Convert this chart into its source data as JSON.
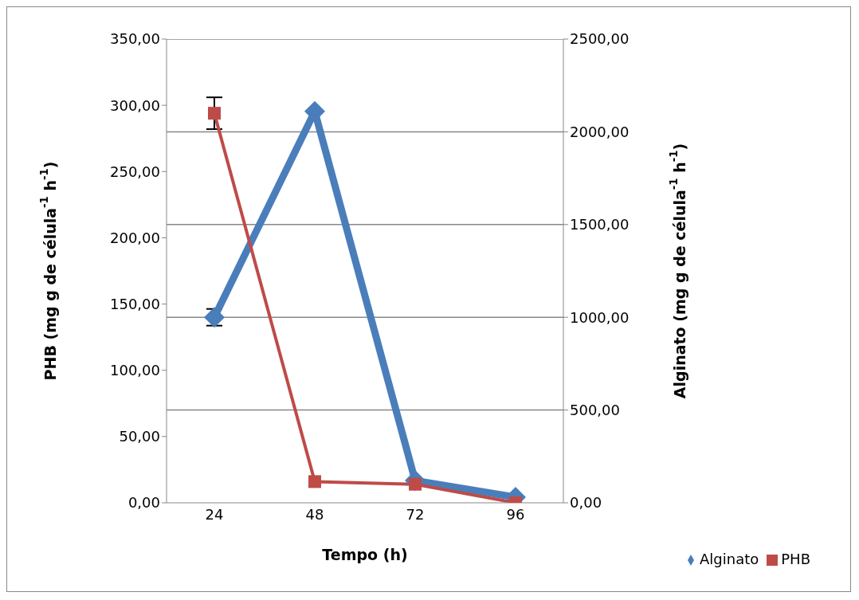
{
  "chart_data": {
    "type": "line",
    "xlabel": "Tempo (h)",
    "ylabel": "PHB  (mg g de célula$^{-1}$ h$^{-1}$)",
    "y2label": "Alginato  (mg g de célula$^{-1}$ h$^{-1}$)",
    "categories": [
      "24",
      "48",
      "72",
      "96"
    ],
    "series": [
      {
        "name": "Alginato",
        "color": "#4a7ebb",
        "axis": "y2",
        "marker": "diamond",
        "values": [
          1000,
          2110,
          120,
          30
        ],
        "errors": [
          45,
          null,
          null,
          null
        ]
      },
      {
        "name": "PHB",
        "color": "#be4b48",
        "axis": "y",
        "marker": "square",
        "values": [
          294,
          16,
          14,
          0
        ],
        "errors": [
          12,
          null,
          null,
          null
        ]
      }
    ],
    "ylim": [
      0,
      350
    ],
    "yticks": [
      {
        "value": 0,
        "label": "0,00"
      },
      {
        "value": 50,
        "label": "50,00"
      },
      {
        "value": 100,
        "label": "100,00"
      },
      {
        "value": 150,
        "label": "150,00"
      },
      {
        "value": 200,
        "label": "200,00"
      },
      {
        "value": 250,
        "label": "250,00"
      },
      {
        "value": 300,
        "label": "300,00"
      },
      {
        "value": 350,
        "label": "350,00"
      }
    ],
    "y2lim": [
      0,
      2500
    ],
    "y2ticks": [
      {
        "value": 0,
        "label": "0,00"
      },
      {
        "value": 500,
        "label": "500,00"
      },
      {
        "value": 1000,
        "label": "1000,00"
      },
      {
        "value": 1500,
        "label": "1500,00"
      },
      {
        "value": 2000,
        "label": "2000,00"
      },
      {
        "value": 2500,
        "label": "2500,00"
      }
    ],
    "grid": "y2",
    "legend": "bottom right",
    "line_style": "solid"
  }
}
